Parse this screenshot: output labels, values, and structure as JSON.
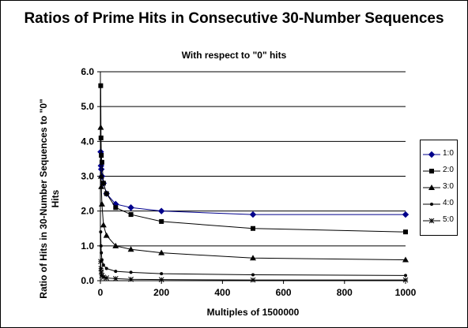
{
  "chart_data": {
    "type": "line",
    "title": "Ratios of Prime Hits in Consecutive 30-Number Sequences",
    "subtitle": "With respect to \"0\" hits",
    "xlabel": "Multiples of 1500000",
    "ylabel": "Ratio of Hits in 30-Number Sequences to \"0\" Hits",
    "xlim": [
      0,
      1000
    ],
    "ylim": [
      0,
      6
    ],
    "x_ticks": [
      "0",
      "200",
      "400",
      "600",
      "800",
      "1000"
    ],
    "y_ticks": [
      "0.0",
      "1.0",
      "2.0",
      "3.0",
      "4.0",
      "5.0",
      "6.0"
    ],
    "grid": "horizontal",
    "legend_position": "right",
    "series": [
      {
        "name": "1:0",
        "color": "#00008B",
        "marker": "diamond",
        "points": [
          [
            1,
            3.7
          ],
          [
            2,
            3.3
          ],
          [
            3,
            3.2
          ],
          [
            5,
            3.0
          ],
          [
            10,
            2.8
          ],
          [
            20,
            2.5
          ],
          [
            50,
            2.2
          ],
          [
            100,
            2.1
          ],
          [
            200,
            2.0
          ],
          [
            500,
            1.9
          ],
          [
            1000,
            1.9
          ]
        ]
      },
      {
        "name": "2:0",
        "color": "#000000",
        "marker": "square",
        "points": [
          [
            1,
            5.6
          ],
          [
            2,
            4.1
          ],
          [
            3,
            3.6
          ],
          [
            5,
            3.4
          ],
          [
            10,
            2.8
          ],
          [
            20,
            2.5
          ],
          [
            50,
            2.1
          ],
          [
            100,
            1.9
          ],
          [
            200,
            1.7
          ],
          [
            500,
            1.5
          ],
          [
            1000,
            1.4
          ]
        ]
      },
      {
        "name": "3:0",
        "color": "#000000",
        "marker": "triangle",
        "points": [
          [
            1,
            4.4
          ],
          [
            2,
            3.0
          ],
          [
            3,
            2.7
          ],
          [
            5,
            2.2
          ],
          [
            10,
            1.6
          ],
          [
            20,
            1.3
          ],
          [
            50,
            1.0
          ],
          [
            100,
            0.9
          ],
          [
            200,
            0.8
          ],
          [
            500,
            0.65
          ],
          [
            1000,
            0.6
          ]
        ]
      },
      {
        "name": "4:0",
        "color": "#000000",
        "marker": "dot",
        "points": [
          [
            1,
            1.4
          ],
          [
            2,
            1.0
          ],
          [
            3,
            0.8
          ],
          [
            5,
            0.6
          ],
          [
            10,
            0.45
          ],
          [
            20,
            0.35
          ],
          [
            50,
            0.27
          ],
          [
            100,
            0.24
          ],
          [
            200,
            0.2
          ],
          [
            500,
            0.17
          ],
          [
            1000,
            0.15
          ]
        ]
      },
      {
        "name": "5:0",
        "color": "#000000",
        "marker": "star",
        "points": [
          [
            1,
            0.55
          ],
          [
            2,
            0.35
          ],
          [
            3,
            0.25
          ],
          [
            5,
            0.15
          ],
          [
            10,
            0.1
          ],
          [
            20,
            0.08
          ],
          [
            50,
            0.06
          ],
          [
            100,
            0.04
          ],
          [
            200,
            0.03
          ],
          [
            500,
            0.02
          ],
          [
            1000,
            0.02
          ]
        ]
      }
    ]
  }
}
